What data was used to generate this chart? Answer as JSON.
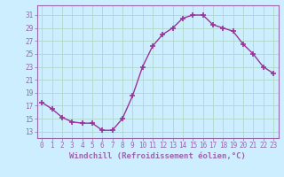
{
  "x": [
    0,
    1,
    2,
    3,
    4,
    5,
    6,
    7,
    8,
    9,
    10,
    11,
    12,
    13,
    14,
    15,
    16,
    17,
    18,
    19,
    20,
    21,
    22,
    23
  ],
  "y": [
    17.5,
    16.5,
    15.2,
    14.5,
    14.3,
    14.3,
    13.2,
    13.2,
    15.0,
    18.5,
    23.0,
    26.2,
    28.0,
    29.0,
    30.5,
    31.0,
    31.0,
    29.5,
    29.0,
    28.5,
    26.5,
    25.0,
    23.0,
    22.0
  ],
  "line_color": "#993399",
  "marker": "+",
  "markersize": 4,
  "linewidth": 1.0,
  "xlabel": "Windchill (Refroidissement éolien,°C)",
  "xlabel_fontsize": 6.5,
  "ylabel_ticks": [
    13,
    15,
    17,
    19,
    21,
    23,
    25,
    27,
    29,
    31
  ],
  "xtick_labels": [
    "0",
    "1",
    "2",
    "3",
    "4",
    "5",
    "6",
    "7",
    "8",
    "9",
    "10",
    "11",
    "12",
    "13",
    "14",
    "15",
    "16",
    "17",
    "18",
    "19",
    "20",
    "21",
    "22",
    "23"
  ],
  "xlim": [
    -0.5,
    23.5
  ],
  "ylim": [
    12.0,
    32.5
  ],
  "bg_color": "#cceeff",
  "grid_color": "#aaddcc",
  "tick_fontsize": 5.5,
  "spine_color": "#9966aa"
}
